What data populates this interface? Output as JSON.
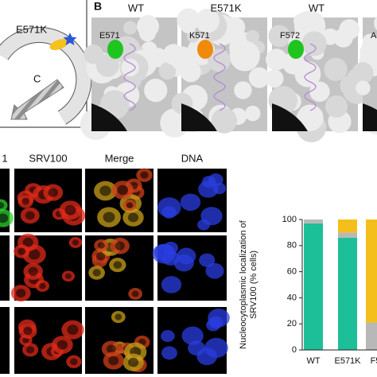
{
  "panel_a": {
    "mutation": "E571K",
    "terminus": "C"
  },
  "panel_b": {
    "label": "B",
    "headers": [
      "WT",
      "E571K",
      "WT"
    ],
    "residues": [
      "E571",
      "K571",
      "F572",
      "A"
    ]
  },
  "panel_c": {
    "column_headers": [
      "1",
      "SRV100",
      "Merge",
      "DNA"
    ]
  },
  "chart_data": {
    "type": "stacked-bar",
    "ylabel": [
      "Nucleocytoplasmic localization of",
      "SRV100 (% cells)"
    ],
    "categories": [
      "WT",
      "E571K",
      "F5"
    ],
    "series": [
      {
        "color": "#1dbf98",
        "values": [
          97,
          86,
          0
        ]
      },
      {
        "color": "#b8b8b8",
        "values": [
          3,
          4,
          21
        ]
      },
      {
        "color": "#f5bf1b",
        "values": [
          0,
          10,
          79
        ]
      }
    ],
    "ylim": [
      0,
      100
    ],
    "yticks": [
      0,
      20,
      40,
      60,
      80,
      100
    ]
  }
}
